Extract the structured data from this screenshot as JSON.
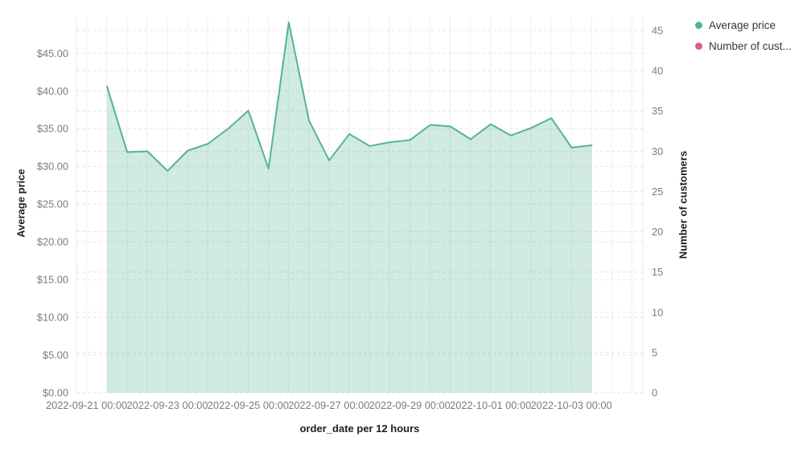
{
  "legend": {
    "items": [
      {
        "label": "Average price",
        "color": "#54B399"
      },
      {
        "label": "Number of cust...",
        "color": "#D36086"
      }
    ]
  },
  "chart_data": {
    "type": "area",
    "title": "",
    "x_axis": {
      "title": "order_date per 12 hours",
      "tick_labels": [
        "2022-09-21 00:00",
        "2022-09-23 00:00",
        "2022-09-25 00:00",
        "2022-09-27 00:00",
        "2022-09-29 00:00",
        "2022-10-01 00:00",
        "2022-10-03 00:00"
      ]
    },
    "y_axis_left": {
      "title": "Average price",
      "tick_labels": [
        "$0.00",
        "$5.00",
        "$10.00",
        "$15.00",
        "$20.00",
        "$25.00",
        "$30.00",
        "$35.00",
        "$40.00",
        "$45.00"
      ],
      "range": [
        0,
        50
      ]
    },
    "y_axis_right": {
      "title": "Number of customers",
      "tick_labels": [
        "0",
        "5",
        "10",
        "15",
        "20",
        "25",
        "30",
        "35",
        "40",
        "45"
      ],
      "range": [
        0,
        47
      ]
    },
    "grid": {
      "horizontal": "dashed",
      "vertical": "solid",
      "legend_position": "top-right"
    },
    "series": [
      {
        "name": "Average price",
        "type": "area",
        "color": "#54B399",
        "fill_opacity": 0.27,
        "x": [
          "2022-09-21 12:00",
          "2022-09-22 00:00",
          "2022-09-22 12:00",
          "2022-09-23 00:00",
          "2022-09-23 12:00",
          "2022-09-24 00:00",
          "2022-09-24 12:00",
          "2022-09-25 00:00",
          "2022-09-25 12:00",
          "2022-09-26 00:00",
          "2022-09-26 12:00",
          "2022-09-27 00:00",
          "2022-09-27 12:00",
          "2022-09-28 00:00",
          "2022-09-28 12:00",
          "2022-09-29 00:00",
          "2022-09-29 12:00",
          "2022-09-30 00:00",
          "2022-09-30 12:00",
          "2022-10-01 00:00",
          "2022-10-01 12:00",
          "2022-10-02 00:00",
          "2022-10-02 12:00",
          "2022-10-03 00:00",
          "2022-10-03 12:00"
        ],
        "values": [
          40.6,
          31.9,
          32.0,
          29.4,
          32.1,
          33.0,
          35.0,
          37.4,
          29.7,
          49.1,
          36.1,
          30.8,
          34.3,
          32.7,
          33.2,
          33.5,
          35.5,
          35.3,
          33.6,
          35.6,
          34.1,
          35.1,
          36.4,
          32.5,
          32.8
        ]
      },
      {
        "name": "Number of customers",
        "type": "line",
        "color": "#D36086",
        "values": []
      }
    ]
  }
}
